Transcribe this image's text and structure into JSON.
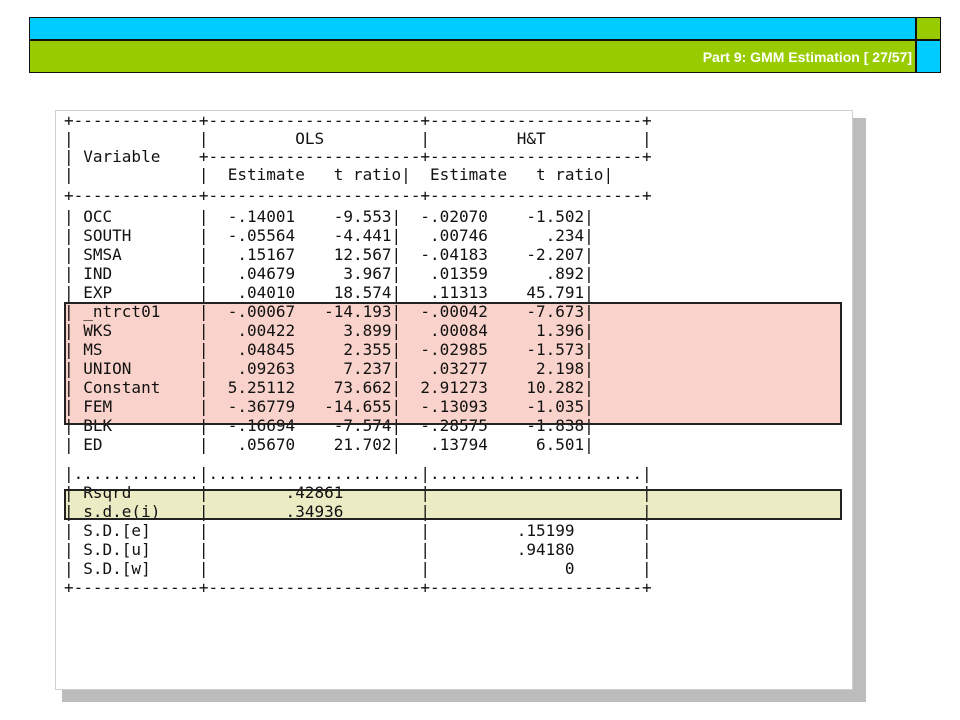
{
  "slide": {
    "title": "Part 9: GMM Estimation [ 27/57]"
  },
  "output": {
    "lines": [
      "+-------------+----------------------+----------------------+",
      "|             |         OLS          |         H&T          |",
      "| Variable    +----------------------+----------------------+",
      "|             |  Estimate   t ratio|  Estimate   t ratio|",
      "+-------------+----------------------+----------------------+",
      "| OCC         |  -.14001    -9.553|  -.02070    -1.502|",
      "| SOUTH       |  -.05564    -4.441|   .00746      .234|",
      "| SMSA        |   .15167    12.567|  -.04183    -2.207|",
      "| IND         |   .04679     3.967|   .01359      .892|",
      "| EXP         |   .04010    18.574|   .11313    45.791|",
      "| _ntrct01    |  -.00067   -14.193|  -.00042    -7.673|",
      "| WKS         |   .00422     3.899|   .00084     1.396|",
      "| MS          |   .04845     2.355|  -.02985    -1.573|",
      "| UNION       |   .09263     7.237|   .03277     2.198|",
      "| Constant    |  5.25112    73.662|  2.91273    10.282|",
      "| FEM         |  -.36779   -14.655|  -.13093    -1.035|",
      "| BLK         |  -.16694    -7.574|  -.28575    -1.838|",
      "| ED          |   .05670    21.702|   .13794     6.501|",
      "|.............|......................|......................|",
      "| Rsqrd       |        .42861        |                      |",
      "| s.d.e(i)    |        .34936        |                      |",
      "| S.D.[e]     |                      |         .15199       |",
      "| S.D.[u]     |                      |         .94180       |",
      "| S.D.[w]     |                      |              0       |",
      "+-------------+----------------------+----------------------+"
    ]
  }
}
